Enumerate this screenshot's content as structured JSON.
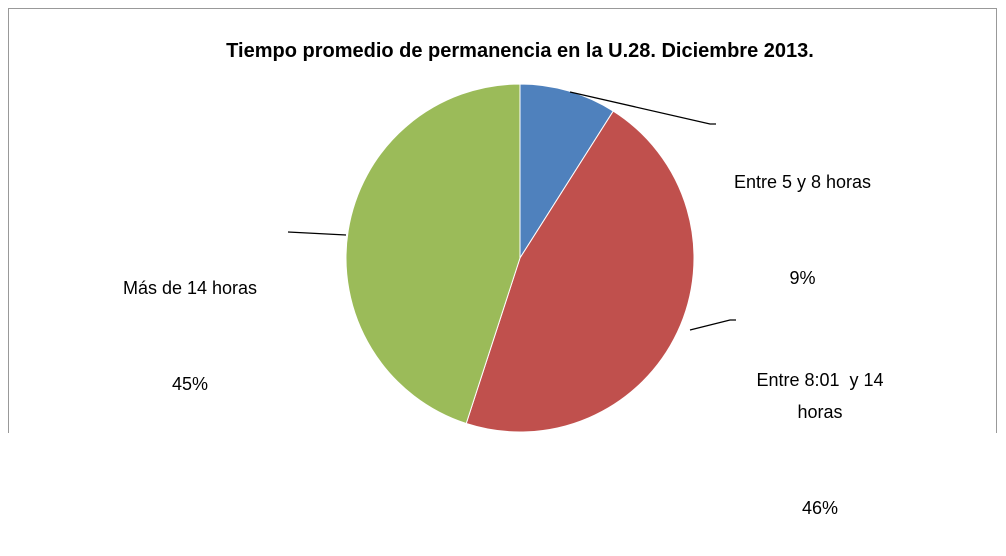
{
  "chart_data": {
    "type": "pie",
    "title": "Tiempo promedio de permanencia en la U.28. Diciembre 2013.",
    "categories": [
      "Entre 5 y 8 horas",
      "Entre 8:01  y 14 horas",
      "Más de 14 horas"
    ],
    "values": [
      9,
      46,
      45
    ],
    "value_labels": [
      "9%",
      "46%",
      "45%"
    ],
    "colors": [
      "#4f81bd",
      "#c0504d",
      "#9bbb59"
    ]
  }
}
